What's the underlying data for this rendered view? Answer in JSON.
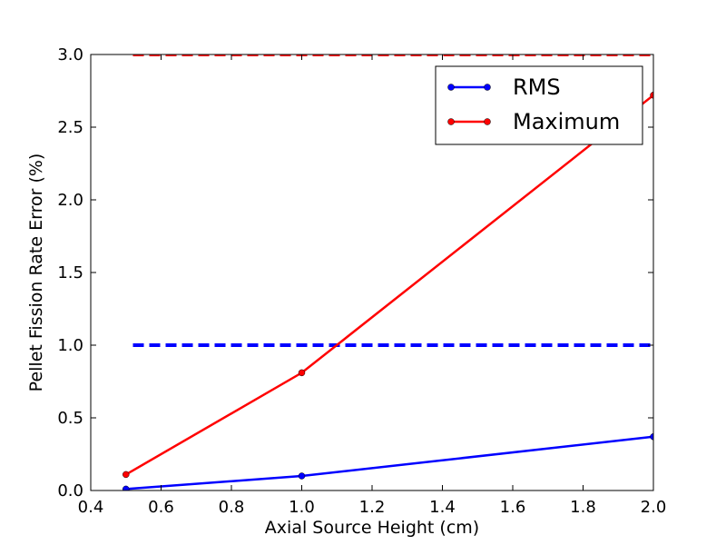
{
  "chart_data": {
    "type": "line",
    "title": "",
    "xlabel": "Axial Source Height (cm)",
    "ylabel": "Pellet Fission Rate Error (%)",
    "xlim": [
      0.4,
      2.0
    ],
    "ylim": [
      0.0,
      3.0
    ],
    "xticks": [
      0.4,
      0.6,
      0.8,
      1.0,
      1.2,
      1.4,
      1.6,
      1.8,
      2.0
    ],
    "yticks": [
      0.0,
      0.5,
      1.0,
      1.5,
      2.0,
      2.5,
      3.0
    ],
    "xtick_labels": [
      "0.4",
      "0.6",
      "0.8",
      "1.0",
      "1.2",
      "1.4",
      "1.6",
      "1.8",
      "2.0"
    ],
    "ytick_labels": [
      "0.0",
      "0.5",
      "1.0",
      "1.5",
      "2.0",
      "2.5",
      "3.0"
    ],
    "grid": false,
    "legend_position": "top-right",
    "series": [
      {
        "name": "RMS",
        "color": "#0000ff",
        "x": [
          0.5,
          1.0,
          2.0
        ],
        "values": [
          0.01,
          0.1,
          0.37
        ]
      },
      {
        "name": "Maximum",
        "color": "#ff0000",
        "x": [
          0.5,
          1.0,
          2.0
        ],
        "values": [
          0.11,
          0.81,
          2.72
        ]
      }
    ],
    "reference_lines": [
      {
        "name": "rms-threshold",
        "y": 1.0,
        "x_range": [
          0.52,
          2.0
        ],
        "color": "#0000ff",
        "style": "dashed"
      },
      {
        "name": "max-threshold",
        "y": 3.0,
        "x_range": [
          0.52,
          2.0
        ],
        "color": "#ff0000",
        "style": "dashed"
      }
    ]
  }
}
